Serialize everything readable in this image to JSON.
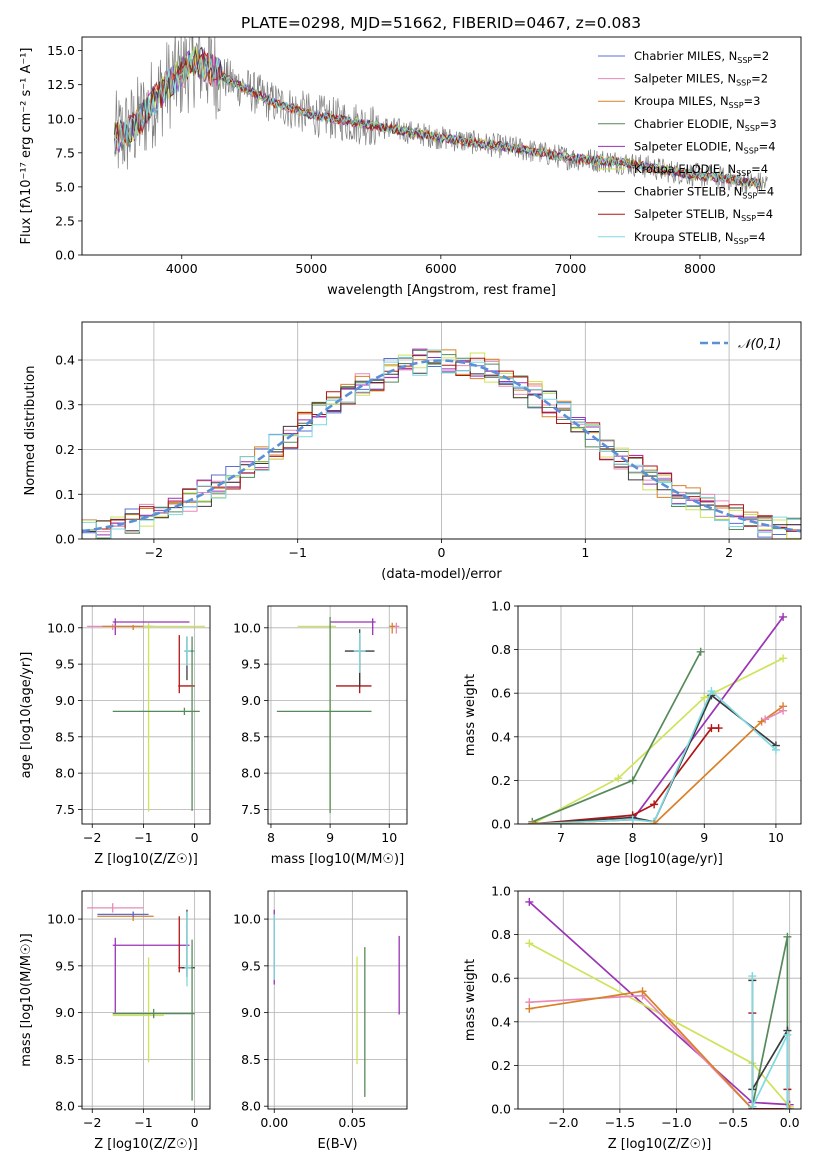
{
  "figure_title": "PLATE=0298, MJD=51662, FIBERID=0467, z=0.083",
  "models": [
    {
      "id": "chab_miles",
      "label": "Chabrier MILES, N",
      "n": "2",
      "color": "#5a6fd6"
    },
    {
      "id": "salp_miles",
      "label": "Salpeter MILES, N",
      "n": "2",
      "color": "#e889b8"
    },
    {
      "id": "krou_miles",
      "label": "Kroupa MILES, N",
      "n": "3",
      "color": "#d88128"
    },
    {
      "id": "chab_elodie",
      "label": "Chabrier ELODIE, N",
      "n": "3",
      "color": "#568a5a"
    },
    {
      "id": "salp_elodie",
      "label": "Salpeter ELODIE, N",
      "n": "4",
      "color": "#9a33b5"
    },
    {
      "id": "krou_elodie",
      "label": "Kroupa ELODIE, N",
      "n": "4",
      "color": "#cfe35a"
    },
    {
      "id": "chab_stelib",
      "label": "Chabrier STELIB, N",
      "n": "4",
      "color": "#3b3b3b"
    },
    {
      "id": "salp_stelib",
      "label": "Salpeter STELIB, N",
      "n": "4",
      "color": "#b01515"
    },
    {
      "id": "krou_stelib",
      "label": "Kroupa STELIB, N",
      "n": "4",
      "color": "#7fd9e0"
    }
  ],
  "chart_data": [
    {
      "id": "spectrum",
      "type": "line",
      "title": "PLATE=0298, MJD=51662, FIBERID=0467, z=0.083",
      "xlabel": "wavelength [Angstrom, rest frame]",
      "ylabel": "Flux [fλ10⁻¹⁷ erg cm⁻² s⁻¹ A⁻¹]",
      "xlim": [
        3230,
        8780
      ],
      "ylim": [
        0,
        16
      ],
      "xticks": [
        4000,
        5000,
        6000,
        7000,
        8000
      ],
      "yticks": [
        0.0,
        2.5,
        5.0,
        7.5,
        10.0,
        12.5,
        15.0
      ],
      "data_color": "#808080",
      "continuum": {
        "x": [
          3500,
          3600,
          3700,
          3800,
          3900,
          4000,
          4100,
          4200,
          4300,
          4400,
          4500,
          4700,
          5000,
          5300,
          5600,
          6000,
          6300,
          6600,
          7000,
          7400,
          7800,
          8200,
          8500
        ],
        "y": [
          8.6,
          9.1,
          10.2,
          11.5,
          12.6,
          13.4,
          14.3,
          13.8,
          13.2,
          12.6,
          12.2,
          11.2,
          10.3,
          9.8,
          9.3,
          8.6,
          8.2,
          7.8,
          7.1,
          6.8,
          6.1,
          5.6,
          5.2
        ]
      },
      "legend_position": "upper right"
    },
    {
      "id": "residuals",
      "type": "step",
      "xlabel": "(data-model)/error",
      "ylabel": "Normed distribution",
      "xlim": [
        -2.5,
        2.5
      ],
      "ylim": [
        0,
        0.485
      ],
      "xticks": [
        -2,
        -1,
        0,
        1,
        2
      ],
      "yticks": [
        0.0,
        0.1,
        0.2,
        0.3,
        0.4
      ],
      "reference": {
        "name": "𝒩(0,1)",
        "color": "#5b8fd6"
      },
      "grid": true
    },
    {
      "id": "age_vs_Z",
      "type": "errorbar",
      "xlabel": "Z [log10(Z/Z☉)]",
      "ylabel": "age  [log10(age/yr)]",
      "xlim": [
        -2.2,
        0.3
      ],
      "ylim": [
        7.3,
        10.3
      ],
      "xticks": [
        -2,
        -1,
        0
      ],
      "yticks": [
        7.5,
        8.0,
        8.5,
        9.0,
        9.5,
        10.0
      ],
      "points": [
        {
          "model": "salp_elodie",
          "x": -1.55,
          "xerr": [
            0.05,
            1.45
          ],
          "y": 10.08,
          "yerr": [
            0.18,
            0.05
          ]
        },
        {
          "model": "salp_miles",
          "x": -1.6,
          "xerr": [
            0.5,
            0.6
          ],
          "y": 10.02,
          "yerr": [
            0.05,
            0.03
          ]
        },
        {
          "model": "krou_miles",
          "x": -1.2,
          "xerr": [
            0.6,
            0.4
          ],
          "y": 10.02,
          "yerr": [
            0.05,
            0.02
          ]
        },
        {
          "model": "krou_elodie",
          "x": -0.9,
          "xerr": [
            0.1,
            1.1
          ],
          "y": 10.02,
          "yerr": [
            2.55,
            0.05
          ]
        },
        {
          "model": "salp_stelib",
          "x": -0.3,
          "xerr": [
            0.02,
            0.3
          ],
          "y": 9.2,
          "yerr": [
            0.1,
            0.7
          ]
        },
        {
          "model": "chab_elodie",
          "x": -0.2,
          "xerr": [
            1.4,
            0.3
          ],
          "y": 8.85,
          "yerr": [
            0.05,
            0.05
          ]
        },
        {
          "model": "chab_stelib",
          "x": -0.15,
          "xerr": [
            0.05,
            0.15
          ],
          "y": 9.68,
          "yerr": [
            0.4,
            0.2
          ]
        },
        {
          "model": "krou_stelib",
          "x": -0.15,
          "xerr": [
            0.05,
            0.15
          ],
          "y": 9.68,
          "yerr": [
            0.2,
            0.2
          ]
        },
        {
          "model": "chab_elodie",
          "x": -0.05,
          "xerr": [
            0.02,
            0.02
          ],
          "y": 9.68,
          "yerr": [
            2.2,
            0.2
          ]
        }
      ]
    },
    {
      "id": "age_vs_mass",
      "type": "errorbar",
      "xlabel": "mass [log10(M/M☉)]",
      "ylabel": "",
      "xlim": [
        7.95,
        10.3
      ],
      "ylim": [
        7.3,
        10.3
      ],
      "xticks": [
        8,
        9,
        10
      ],
      "yticks": [
        7.5,
        8.0,
        8.5,
        9.0,
        9.5,
        10.0
      ],
      "points": [
        {
          "model": "krou_elodie",
          "x": 9.0,
          "xerr": [
            0.55,
            0.1
          ],
          "y": 10.02,
          "yerr": [
            2.55,
            0.05
          ]
        },
        {
          "model": "salp_elodie",
          "x": 9.72,
          "xerr": [
            0.72,
            0.05
          ],
          "y": 10.08,
          "yerr": [
            0.18,
            0.05
          ]
        },
        {
          "model": "chab_elodie",
          "x": 9.0,
          "xerr": [
            0.9,
            0.7
          ],
          "y": 8.85,
          "yerr": [
            1.4,
            1.3
          ]
        },
        {
          "model": "salp_stelib",
          "x": 9.5,
          "xerr": [
            0.4,
            0.2
          ],
          "y": 9.2,
          "yerr": [
            0.1,
            0.7
          ]
        },
        {
          "model": "chab_stelib",
          "x": 9.5,
          "xerr": [
            0.25,
            0.25
          ],
          "y": 9.68,
          "yerr": [
            0.5,
            0.3
          ]
        },
        {
          "model": "krou_stelib",
          "x": 9.5,
          "xerr": [
            0.1,
            0.1
          ],
          "y": 9.68,
          "yerr": [
            0.3,
            0.25
          ]
        },
        {
          "model": "salp_miles",
          "x": 10.12,
          "xerr": [
            0.05,
            0.05
          ],
          "y": 10.02,
          "yerr": [
            0.1,
            0.05
          ]
        },
        {
          "model": "krou_miles",
          "x": 10.05,
          "xerr": [
            0.05,
            0.05
          ],
          "y": 10.02,
          "yerr": [
            0.1,
            0.05
          ]
        }
      ]
    },
    {
      "id": "weight_vs_age",
      "type": "line",
      "xlabel": "age  [log10(age/yr)]",
      "ylabel": "mass weight",
      "xlim": [
        6.4,
        10.35
      ],
      "ylim": [
        0,
        1
      ],
      "xticks": [
        7,
        8,
        9,
        10
      ],
      "yticks": [
        0.0,
        0.2,
        0.4,
        0.6,
        0.8,
        1.0
      ],
      "series": [
        {
          "model": "krou_elodie",
          "x": [
            6.6,
            7.8,
            9.0,
            10.1
          ],
          "y": [
            0.0,
            0.21,
            0.58,
            0.76
          ]
        },
        {
          "model": "salp_elodie",
          "x": [
            6.6,
            8.0,
            10.1
          ],
          "y": [
            0.0,
            0.02,
            0.95
          ]
        },
        {
          "model": "chab_elodie",
          "x": [
            6.6,
            8.0,
            8.95
          ],
          "y": [
            0.01,
            0.2,
            0.79
          ]
        },
        {
          "model": "salp_stelib",
          "x": [
            6.6,
            8.0,
            8.3,
            9.1,
            9.2
          ],
          "y": [
            0.0,
            0.04,
            0.09,
            0.44,
            0.44
          ]
        },
        {
          "model": "chab_stelib",
          "x": [
            6.6,
            8.0,
            8.3,
            9.1,
            10.0
          ],
          "y": [
            0.0,
            0.03,
            0.01,
            0.59,
            0.36
          ]
        },
        {
          "model": "krou_stelib",
          "x": [
            6.6,
            8.0,
            8.3,
            9.1,
            10.0
          ],
          "y": [
            0.0,
            0.02,
            0.01,
            0.61,
            0.34
          ]
        },
        {
          "model": "krou_miles",
          "x": [
            6.6,
            8.3,
            9.8,
            10.1
          ],
          "y": [
            0.0,
            0.0,
            0.47,
            0.54
          ]
        },
        {
          "model": "salp_miles",
          "x": [
            9.85,
            10.1
          ],
          "y": [
            0.48,
            0.52
          ]
        }
      ]
    },
    {
      "id": "mass_vs_Z",
      "type": "errorbar",
      "xlabel": "Z [log10(Z/Z☉)]",
      "ylabel": "mass [log10(M/M☉)]",
      "xlim": [
        -2.2,
        0.3
      ],
      "ylim": [
        7.97,
        10.3
      ],
      "xticks": [
        -2,
        -1,
        0
      ],
      "yticks": [
        8.0,
        8.5,
        9.0,
        9.5,
        10.0
      ],
      "points": [
        {
          "model": "salp_miles",
          "x": -1.6,
          "xerr": [
            0.5,
            0.6
          ],
          "y": 10.12,
          "yerr": [
            0.05,
            0.05
          ]
        },
        {
          "model": "krou_miles",
          "x": -1.2,
          "xerr": [
            0.7,
            0.4
          ],
          "y": 10.03,
          "yerr": [
            0.05,
            0.05
          ]
        },
        {
          "model": "chab_miles",
          "x": -1.2,
          "xerr": [
            0.7,
            0.3
          ],
          "y": 10.05,
          "yerr": [
            0.03,
            0.03
          ]
        },
        {
          "model": "salp_elodie",
          "x": -1.55,
          "xerr": [
            0.05,
            1.45
          ],
          "y": 9.72,
          "yerr": [
            0.72,
            0.08
          ]
        },
        {
          "model": "krou_elodie",
          "x": -0.9,
          "xerr": [
            0.7,
            0.3
          ],
          "y": 8.97,
          "yerr": [
            0.5,
            0.62
          ]
        },
        {
          "model": "chab_elodie",
          "x": -0.8,
          "xerr": [
            0.8,
            0.8
          ],
          "y": 8.99,
          "yerr": [
            0.05,
            0.05
          ]
        },
        {
          "model": "salp_stelib",
          "x": -0.3,
          "xerr": [
            0.02,
            0.3
          ],
          "y": 9.48,
          "yerr": [
            0.05,
            0.55
          ]
        },
        {
          "model": "chab_stelib",
          "x": -0.15,
          "xerr": [
            0.1,
            0.15
          ],
          "y": 9.48,
          "yerr": [
            0.1,
            0.62
          ]
        },
        {
          "model": "krou_stelib",
          "x": -0.15,
          "xerr": [
            0.05,
            0.1
          ],
          "y": 9.48,
          "yerr": [
            0.2,
            0.6
          ]
        },
        {
          "model": "chab_elodie",
          "x": -0.05,
          "xerr": [
            0.02,
            0.02
          ],
          "y": 9.48,
          "yerr": [
            1.42,
            0.3
          ]
        }
      ]
    },
    {
      "id": "mass_vs_ebv",
      "type": "errorbar",
      "xlabel": "E(B-V)",
      "ylabel": "",
      "xlim": [
        -0.004,
        0.085
      ],
      "ylim": [
        7.97,
        10.3
      ],
      "xticks": [
        0.0,
        0.05
      ],
      "yticks": [
        8.0,
        8.5,
        9.0,
        9.5,
        10.0
      ],
      "points": [
        {
          "model": "salp_elodie",
          "x": 0.0,
          "y": 9.7,
          "yerr": [
            0.4,
            0.4
          ]
        },
        {
          "model": "krou_stelib",
          "x": 0.0,
          "y": 9.7,
          "yerr": [
            0.35,
            0.35
          ]
        },
        {
          "model": "krou_elodie",
          "x": 0.053,
          "y": 9.05,
          "yerr": [
            0.6,
            0.55
          ]
        },
        {
          "model": "chab_elodie",
          "x": 0.058,
          "y": 8.9,
          "yerr": [
            0.8,
            0.8
          ]
        },
        {
          "model": "salp_elodie",
          "x": 0.08,
          "y": 9.4,
          "yerr": [
            0.42,
            0.42
          ]
        }
      ]
    },
    {
      "id": "weight_vs_Z",
      "type": "line",
      "xlabel": "Z [log10(Z/Z☉)]",
      "ylabel": "mass weight",
      "xlim": [
        -2.4,
        0.1
      ],
      "ylim": [
        0,
        1
      ],
      "xticks": [
        -2.0,
        -1.5,
        -1.0,
        -0.5,
        0.0
      ],
      "yticks": [
        0.0,
        0.2,
        0.4,
        0.6,
        0.8,
        1.0
      ],
      "series": [
        {
          "model": "salp_elodie",
          "x": [
            -2.3,
            -0.33,
            0.0
          ],
          "y": [
            0.95,
            0.03,
            0.02
          ]
        },
        {
          "model": "krou_elodie",
          "x": [
            -2.3,
            -0.33,
            0.0
          ],
          "y": [
            0.76,
            0.21,
            0.01
          ]
        },
        {
          "model": "salp_miles",
          "x": [
            -2.3,
            -1.3,
            -0.33,
            0.0
          ],
          "y": [
            0.49,
            0.52,
            0.0,
            0.0
          ]
        },
        {
          "model": "krou_miles",
          "x": [
            -2.3,
            -1.3,
            -0.33,
            0.0
          ],
          "y": [
            0.46,
            0.54,
            0.0,
            0.0
          ]
        },
        {
          "model": "chab_elodie",
          "x": [
            -0.33,
            -0.02,
            -0.02
          ],
          "y": [
            0.01,
            0.79,
            0.0
          ]
        },
        {
          "model": "salp_stelib",
          "x": [
            -0.33,
            -0.33,
            -0.02,
            -0.02
          ],
          "y": [
            0.44,
            0.0,
            0.0,
            0.09
          ]
        },
        {
          "model": "chab_stelib",
          "x": [
            -0.33,
            -0.33,
            -0.02,
            -0.02
          ],
          "y": [
            0.59,
            0.09,
            0.36,
            0.0
          ]
        },
        {
          "model": "krou_stelib",
          "x": [
            -0.33,
            -0.33,
            -0.02,
            -0.02
          ],
          "y": [
            0.61,
            0.01,
            0.34,
            0.0
          ]
        }
      ]
    }
  ]
}
